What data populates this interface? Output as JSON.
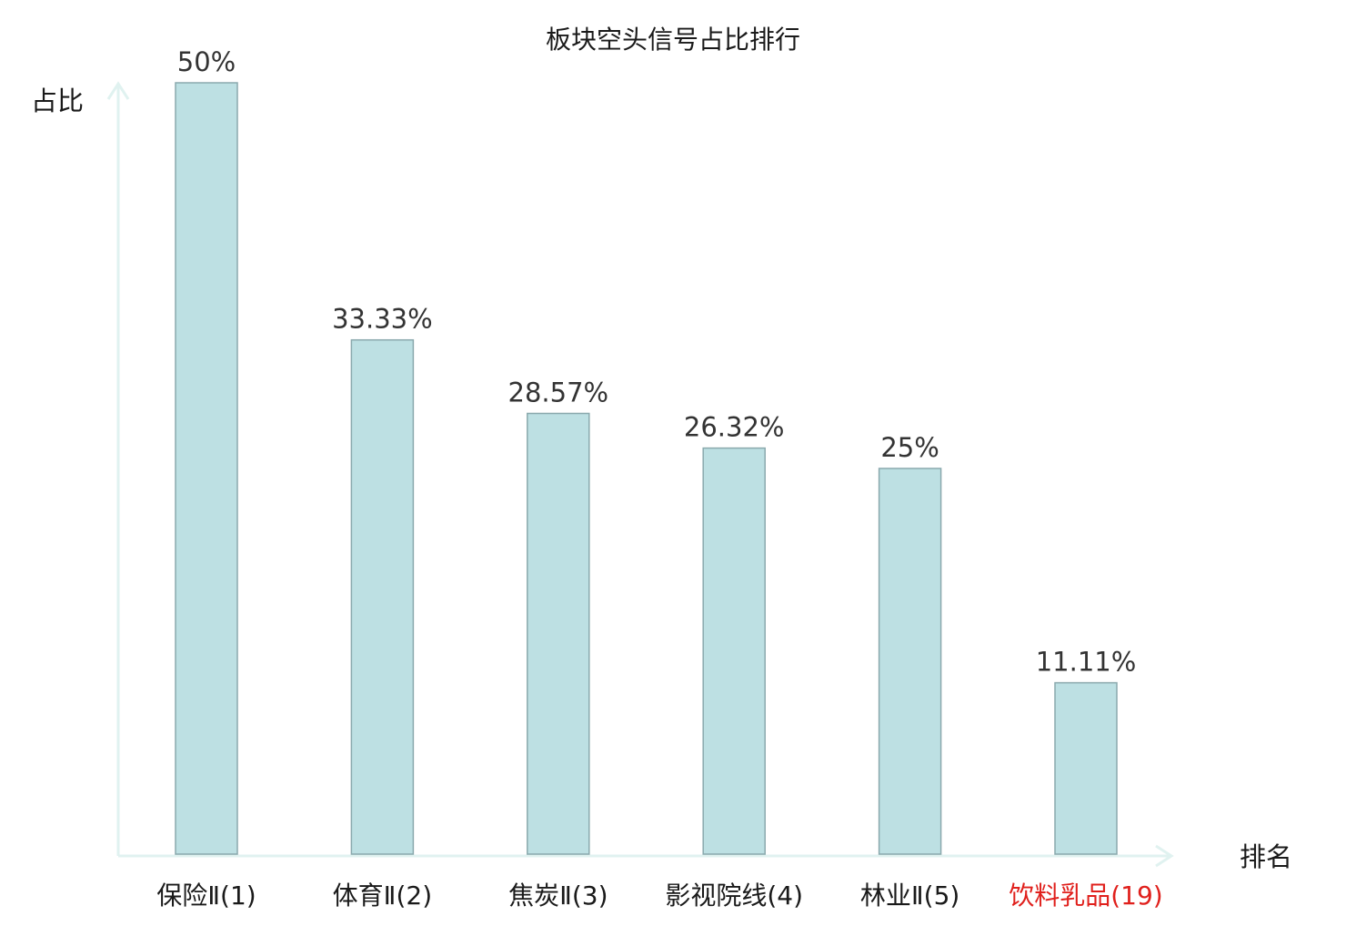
{
  "chart_data": {
    "type": "bar",
    "title": "板块空头信号占比排行",
    "ylabel": "占比",
    "xlabel": "排名",
    "categories": [
      "保险Ⅱ(1)",
      "体育Ⅱ(2)",
      "焦炭Ⅱ(3)",
      "影视院线(4)",
      "林业Ⅱ(5)",
      "饮料乳品(19)"
    ],
    "values": [
      50,
      33.33,
      28.57,
      26.32,
      25,
      11.11
    ],
    "value_labels": [
      "50%",
      "33.33%",
      "28.57%",
      "26.32%",
      "25%",
      "11.11%"
    ],
    "highlight_category_index": 5,
    "ylim": [
      0,
      50
    ],
    "grid": false,
    "colors": {
      "bar_fill": "#bde0e3",
      "bar_stroke": "#8aa9ad",
      "axis": "#e0f2f0",
      "tick_text": "#1a1a1a",
      "highlight_text": "#e0201c"
    }
  }
}
